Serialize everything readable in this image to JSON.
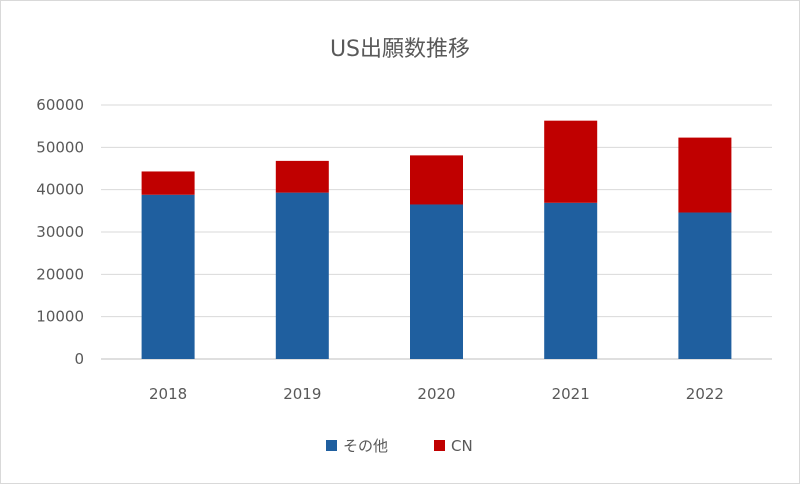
{
  "chart_data": {
    "type": "bar",
    "stacked": true,
    "title": "US出願数推移",
    "xlabel": "",
    "ylabel": "",
    "categories": [
      "2018",
      "2019",
      "2020",
      "2021",
      "2022"
    ],
    "series": [
      {
        "name": "その他",
        "color": "#1f5f9f",
        "values": [
          38800,
          39300,
          36500,
          36900,
          34600
        ]
      },
      {
        "name": "CN",
        "color": "#c00000",
        "values": [
          5500,
          7500,
          11600,
          19400,
          17700
        ]
      }
    ],
    "ylim": [
      0,
      60000
    ],
    "yticks": [
      "0",
      "10000",
      "20000",
      "30000",
      "40000",
      "50000",
      "60000"
    ],
    "grid": true,
    "legend_position": "bottom"
  }
}
